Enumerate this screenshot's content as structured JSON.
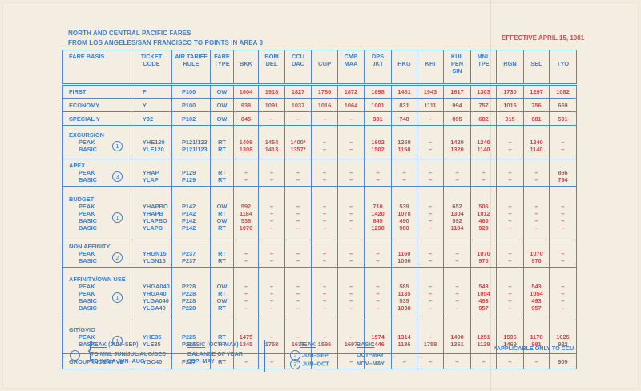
{
  "document": {
    "title_line1": "NORTH AND CENTRAL PACIFIC FARES",
    "title_line2": "FROM LOS ANGELES/SAN FRANCISCO TO POINTS IN AREA 3",
    "effective": "EFFECTIVE APRIL 15, 1981",
    "colors": {
      "blue": "#3a7fd0",
      "red": "#d04a4f",
      "paper": "#f3eee1"
    }
  },
  "table": {
    "headers": {
      "fare_basis": "FARE BASIS",
      "ticket_code": [
        "TICKET",
        "CODE"
      ],
      "air_tariff_rule": [
        "AIR TARIFF",
        "RULE"
      ],
      "fare_type": [
        "FARE",
        "TYPE"
      ],
      "destinations": [
        [
          "BKK"
        ],
        [
          "BOM",
          "DEL"
        ],
        [
          "CCU",
          "DAC"
        ],
        [
          "CGP"
        ],
        [
          "CMB",
          "MAA"
        ],
        [
          "DPS",
          "JKT"
        ],
        [
          "HKG"
        ],
        [
          "KHI"
        ],
        [
          "KUL",
          "PEN",
          "SIN"
        ],
        [
          "MNL",
          "TPE"
        ],
        [
          "RGN"
        ],
        [
          "SEL"
        ],
        [
          "TYO"
        ]
      ]
    },
    "groups": [
      {
        "name": "FIRST",
        "note": "",
        "rows": [
          {
            "label": "",
            "code": "F",
            "rule": "P100",
            "type": "OW",
            "values": [
              "1604",
              "1918",
              "1827",
              "1786",
              "1872",
              "1698",
              "1481",
              "1943",
              "1617",
              "1303",
              "1730",
              "1297",
              "1082"
            ]
          }
        ]
      },
      {
        "name": "ECONOMY",
        "note": "",
        "rows": [
          {
            "label": "",
            "code": "Y",
            "rule": "P100",
            "type": "OW",
            "values": [
              "938",
              "1091",
              "1037",
              "1016",
              "1064",
              "1001",
              "831",
              "1111",
              "994",
              "757",
              "1016",
              "756",
              "669"
            ]
          }
        ]
      },
      {
        "name": "SPECIAL Y",
        "note": "",
        "rows": [
          {
            "label": "",
            "code": "Y02",
            "rule": "P102",
            "type": "OW",
            "values": [
              "845",
              "–",
              "–",
              "–",
              "–",
              "901",
              "748",
              "–",
              "895",
              "682",
              "915",
              "681",
              "591"
            ]
          }
        ]
      },
      {
        "name": "EXCURSION",
        "note": "1",
        "rows": [
          {
            "label": "PEAK",
            "code": "YHE120",
            "rule": "P121/123",
            "type": "RT",
            "values": [
              "1408",
              "1454",
              "1400*",
              "–",
              "–",
              "1602",
              "1250",
              "–",
              "1420",
              "1240",
              "–",
              "1240",
              "–"
            ]
          },
          {
            "label": "BASIC",
            "code": "YLE120",
            "rule": "P121/123",
            "type": "RT",
            "values": [
              "1308",
              "1413",
              "1357*",
              "–",
              "–",
              "1502",
              "1150",
              "–",
              "1320",
              "1140",
              "–",
              "1140",
              "–"
            ]
          }
        ]
      },
      {
        "name": "APEX",
        "note": "3",
        "rows": [
          {
            "label": "PEAK",
            "code": "YHAP",
            "rule": "P129",
            "type": "RT",
            "values": [
              "–",
              "–",
              "–",
              "–",
              "–",
              "–",
              "–",
              "–",
              "–",
              "–",
              "–",
              "–",
              "866"
            ]
          },
          {
            "label": "BASIC",
            "code": "YLAP",
            "rule": "P129",
            "type": "RT",
            "values": [
              "–",
              "–",
              "–",
              "–",
              "–",
              "–",
              "–",
              "–",
              "–",
              "–",
              "–",
              "–",
              "794"
            ]
          }
        ]
      },
      {
        "name": "BUDGET",
        "note": "1",
        "rows": [
          {
            "label": "PEAK",
            "code": "YHAPBO",
            "rule": "P142",
            "type": "OW",
            "values": [
              "592",
              "–",
              "–",
              "–",
              "–",
              "710",
              "539",
              "–",
              "652",
              "506",
              "–",
              "–",
              "–"
            ]
          },
          {
            "label": "PEAK",
            "code": "YHAPB",
            "rule": "P142",
            "type": "RT",
            "values": [
              "1184",
              "–",
              "–",
              "–",
              "–",
              "1420",
              "1078",
              "–",
              "1304",
              "1012",
              "–",
              "–",
              "–"
            ]
          },
          {
            "label": "BASIC",
            "code": "YLAPBO",
            "rule": "P142",
            "type": "OW",
            "values": [
              "538",
              "–",
              "–",
              "–",
              "–",
              "645",
              "490",
              "–",
              "592",
              "460",
              "–",
              "–",
              "–"
            ]
          },
          {
            "label": "BASIC",
            "code": "YLAPB",
            "rule": "P142",
            "type": "RT",
            "values": [
              "1076",
              "–",
              "–",
              "–",
              "–",
              "1290",
              "980",
              "–",
              "1184",
              "920",
              "–",
              "–",
              "–"
            ]
          }
        ]
      },
      {
        "name": "NON AFFINITY",
        "note": "2",
        "rows": [
          {
            "label": "PEAK",
            "code": "YHGN15",
            "rule": "P237",
            "type": "RT",
            "values": [
              "–",
              "–",
              "–",
              "–",
              "–",
              "–",
              "1160",
              "–",
              "–",
              "1070",
              "–",
              "1070",
              "–"
            ]
          },
          {
            "label": "BASIC",
            "code": "YLGN15",
            "rule": "P237",
            "type": "RT",
            "values": [
              "–",
              "–",
              "–",
              "–",
              "–",
              "–",
              "1060",
              "–",
              "–",
              "970",
              "–",
              "970",
              "–"
            ]
          }
        ]
      },
      {
        "name": "AFFINITY/OWN USE",
        "note": "1",
        "rows": [
          {
            "label": "PEAK",
            "code": "YHGA040",
            "rule": "P228",
            "type": "OW",
            "values": [
              "–",
              "–",
              "–",
              "–",
              "–",
              "–",
              "585",
              "–",
              "–",
              "543",
              "–",
              "543",
              "–"
            ]
          },
          {
            "label": "PEAK",
            "code": "YHGA40",
            "rule": "P228",
            "type": "RT",
            "values": [
              "–",
              "–",
              "–",
              "–",
              "–",
              "–",
              "1135",
              "–",
              "–",
              "1054",
              "–",
              "1054",
              "–"
            ]
          },
          {
            "label": "BASIC",
            "code": "YLGA040",
            "rule": "P228",
            "type": "OW",
            "values": [
              "–",
              "–",
              "–",
              "–",
              "–",
              "–",
              "535",
              "–",
              "–",
              "493",
              "–",
              "493",
              "–"
            ]
          },
          {
            "label": "BASIC",
            "code": "YLGA40",
            "rule": "P228",
            "type": "RT",
            "values": [
              "–",
              "–",
              "–",
              "–",
              "–",
              "–",
              "1038",
              "–",
              "–",
              "957",
              "–",
              "957",
              "–"
            ]
          }
        ]
      },
      {
        "name": "GIT/GVIO",
        "note": "1",
        "rows": [
          {
            "label": "PEAK",
            "code": "YHE35",
            "rule": "P225",
            "type": "RT",
            "values": [
              "1475",
              "–",
              "–",
              "–",
              "–",
              "1574",
              "1314",
              "–",
              "1490",
              "1251",
              "1596",
              "1178",
              "1025"
            ]
          },
          {
            "label": "BASIC",
            "code": "YLE35",
            "rule": "P225",
            "type": "RT",
            "values": [
              "1345",
              "1758",
              "1633",
              "1596",
              "1697",
              "1446",
              "1186",
              "1758",
              "1361",
              "1129",
              "1469",
              "981",
              "922"
            ]
          }
        ]
      },
      {
        "name": "GROUP INCENTIVE",
        "note": "",
        "rows": [
          {
            "label": "",
            "code": "YGC40",
            "rule": "P227",
            "type": "RT",
            "values": [
              "–",
              "–",
              "–",
              "–",
              "–",
              "–",
              "–",
              "–",
              "–",
              "–",
              "–",
              "–",
              "909"
            ]
          }
        ]
      }
    ]
  },
  "legend": {
    "note1": {
      "number": "1",
      "peak_title": "PEAK",
      "peak_period": " (JUN–SEP)",
      "peak_line2": "TO MNL JUN/JUL/AUG/DEC",
      "peak_line3": "TO INDIA JUN–AUG",
      "basic_title": "BASIC",
      "basic_period": " (OCT–MAY)",
      "basic_line2": "BALANCE OF YEAR",
      "basic_line3": "SEP–MAY"
    },
    "notes23": {
      "peak_title": "PEAK",
      "basic_title": "BASIC",
      "rows": [
        {
          "number": "2",
          "peak": "JUN–SEP",
          "basic": "OCT–MAY"
        },
        {
          "number": "3",
          "peak": "JUN–OCT",
          "basic": "NOV–MAY"
        }
      ]
    },
    "asterisk_note": "*APPLICABLE ONLY TO CCU"
  }
}
